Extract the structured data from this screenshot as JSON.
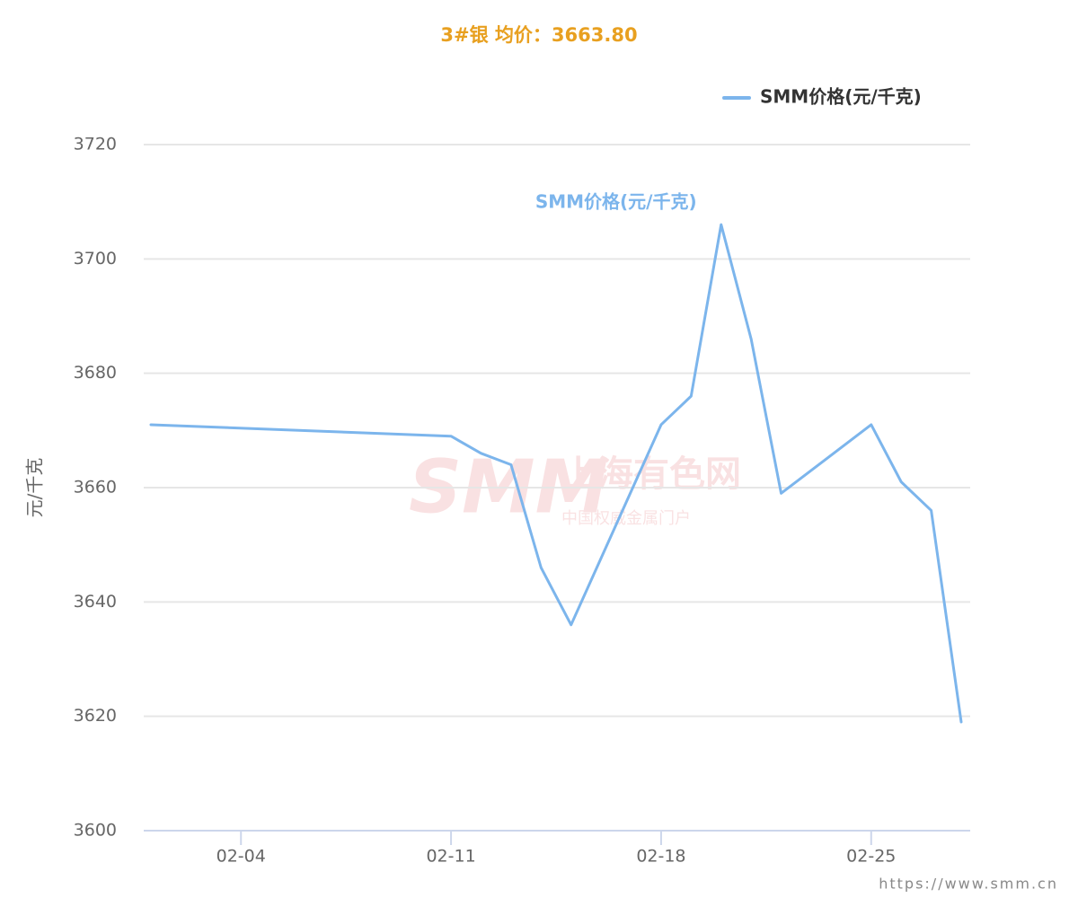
{
  "chart_data": {
    "type": "line",
    "title": "3#银 均价：3663.80",
    "y_label": "元/千克",
    "x": [
      "02-01",
      "02-11",
      "02-12",
      "02-13",
      "02-14",
      "02-15",
      "02-18",
      "02-19",
      "02-20",
      "02-21",
      "02-22",
      "02-25",
      "02-26",
      "02-27",
      "02-28"
    ],
    "series": [
      {
        "name": "SMM价格(元/千克)",
        "color": "#7cb5ec",
        "values": [
          3671,
          3669,
          3666,
          3664,
          3646,
          3636,
          3671,
          3676,
          3706,
          3686,
          3659,
          3671,
          3661,
          3656,
          3619
        ]
      }
    ],
    "xticks": [
      "02-04",
      "02-11",
      "02-18",
      "02-25"
    ],
    "ylim": [
      3600,
      3720
    ],
    "yticks": [
      3600,
      3620,
      3640,
      3660,
      3680,
      3700,
      3720
    ],
    "grid": true,
    "legend": "top-right"
  },
  "watermark": {
    "logo": "SMM",
    "name": "上海有色网",
    "slogan": "中国权威金属门户"
  },
  "footer": "https://www.smm.cn"
}
